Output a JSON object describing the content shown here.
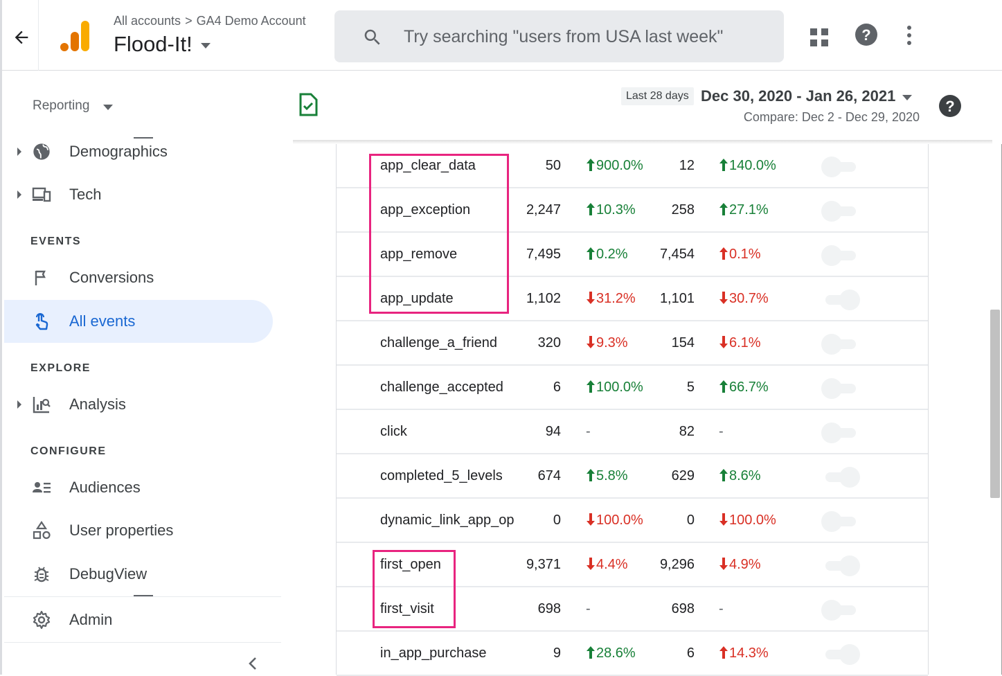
{
  "header": {
    "breadcrumb": [
      "All accounts",
      "GA4 Demo Account"
    ],
    "breadcrumb_sep": ">",
    "property": "Flood-It!",
    "search_placeholder": "Try searching \"users from USA last week\""
  },
  "sidebar": {
    "reporting_label": "Reporting",
    "items": {
      "demographics": "Demographics",
      "tech": "Tech",
      "events_section": "EVENTS",
      "conversions": "Conversions",
      "all_events": "All events",
      "explore_section": "EXPLORE",
      "analysis": "Analysis",
      "configure_section": "CONFIGURE",
      "audiences": "Audiences",
      "user_properties": "User properties",
      "debugview": "DebugView",
      "admin": "Admin"
    },
    "active_item": "All events"
  },
  "date_bar": {
    "chip": "Last 28 days",
    "range": "Dec 30, 2020 - Jan 26, 2021",
    "compare": "Compare: Dec 2 - Dec 29, 2020"
  },
  "colors": {
    "accent": "#1967d2",
    "positive": "#188038",
    "negative": "#d93025",
    "highlight": "#e8247f"
  },
  "table": {
    "rows": [
      {
        "name": "app_clear_data",
        "count": "50",
        "count_change": "900.0%",
        "count_dir": "up",
        "users": "12",
        "users_change": "140.0%",
        "users_dir": "up",
        "conversion": false
      },
      {
        "name": "app_exception",
        "count": "2,247",
        "count_change": "10.3%",
        "count_dir": "up",
        "users": "258",
        "users_change": "27.1%",
        "users_dir": "up",
        "conversion": false
      },
      {
        "name": "app_remove",
        "count": "7,495",
        "count_change": "0.2%",
        "count_dir": "up",
        "users": "7,454",
        "users_change": "0.1%",
        "users_dir": "up-red",
        "conversion": false
      },
      {
        "name": "app_update",
        "count": "1,102",
        "count_change": "31.2%",
        "count_dir": "down",
        "users": "1,101",
        "users_change": "30.7%",
        "users_dir": "down",
        "conversion": true
      },
      {
        "name": "challenge_a_friend",
        "count": "320",
        "count_change": "9.3%",
        "count_dir": "down",
        "users": "154",
        "users_change": "6.1%",
        "users_dir": "down",
        "conversion": false
      },
      {
        "name": "challenge_accepted",
        "count": "6",
        "count_change": "100.0%",
        "count_dir": "up",
        "users": "5",
        "users_change": "66.7%",
        "users_dir": "up",
        "conversion": false
      },
      {
        "name": "click",
        "count": "94",
        "count_change": "-",
        "count_dir": "none",
        "users": "82",
        "users_change": "-",
        "users_dir": "none",
        "conversion": false
      },
      {
        "name": "completed_5_levels",
        "count": "674",
        "count_change": "5.8%",
        "count_dir": "up",
        "users": "629",
        "users_change": "8.6%",
        "users_dir": "up",
        "conversion": true
      },
      {
        "name": "dynamic_link_app_op",
        "count": "0",
        "count_change": "100.0%",
        "count_dir": "down",
        "users": "0",
        "users_change": "100.0%",
        "users_dir": "down",
        "conversion": false
      },
      {
        "name": "first_open",
        "count": "9,371",
        "count_change": "4.4%",
        "count_dir": "down",
        "users": "9,296",
        "users_change": "4.9%",
        "users_dir": "down",
        "conversion": true
      },
      {
        "name": "first_visit",
        "count": "698",
        "count_change": "-",
        "count_dir": "none",
        "users": "698",
        "users_change": "-",
        "users_dir": "none",
        "conversion": false
      },
      {
        "name": "in_app_purchase",
        "count": "9",
        "count_change": "28.6%",
        "count_dir": "up",
        "users": "6",
        "users_change": "14.3%",
        "users_dir": "up-red",
        "conversion": true
      }
    ]
  }
}
